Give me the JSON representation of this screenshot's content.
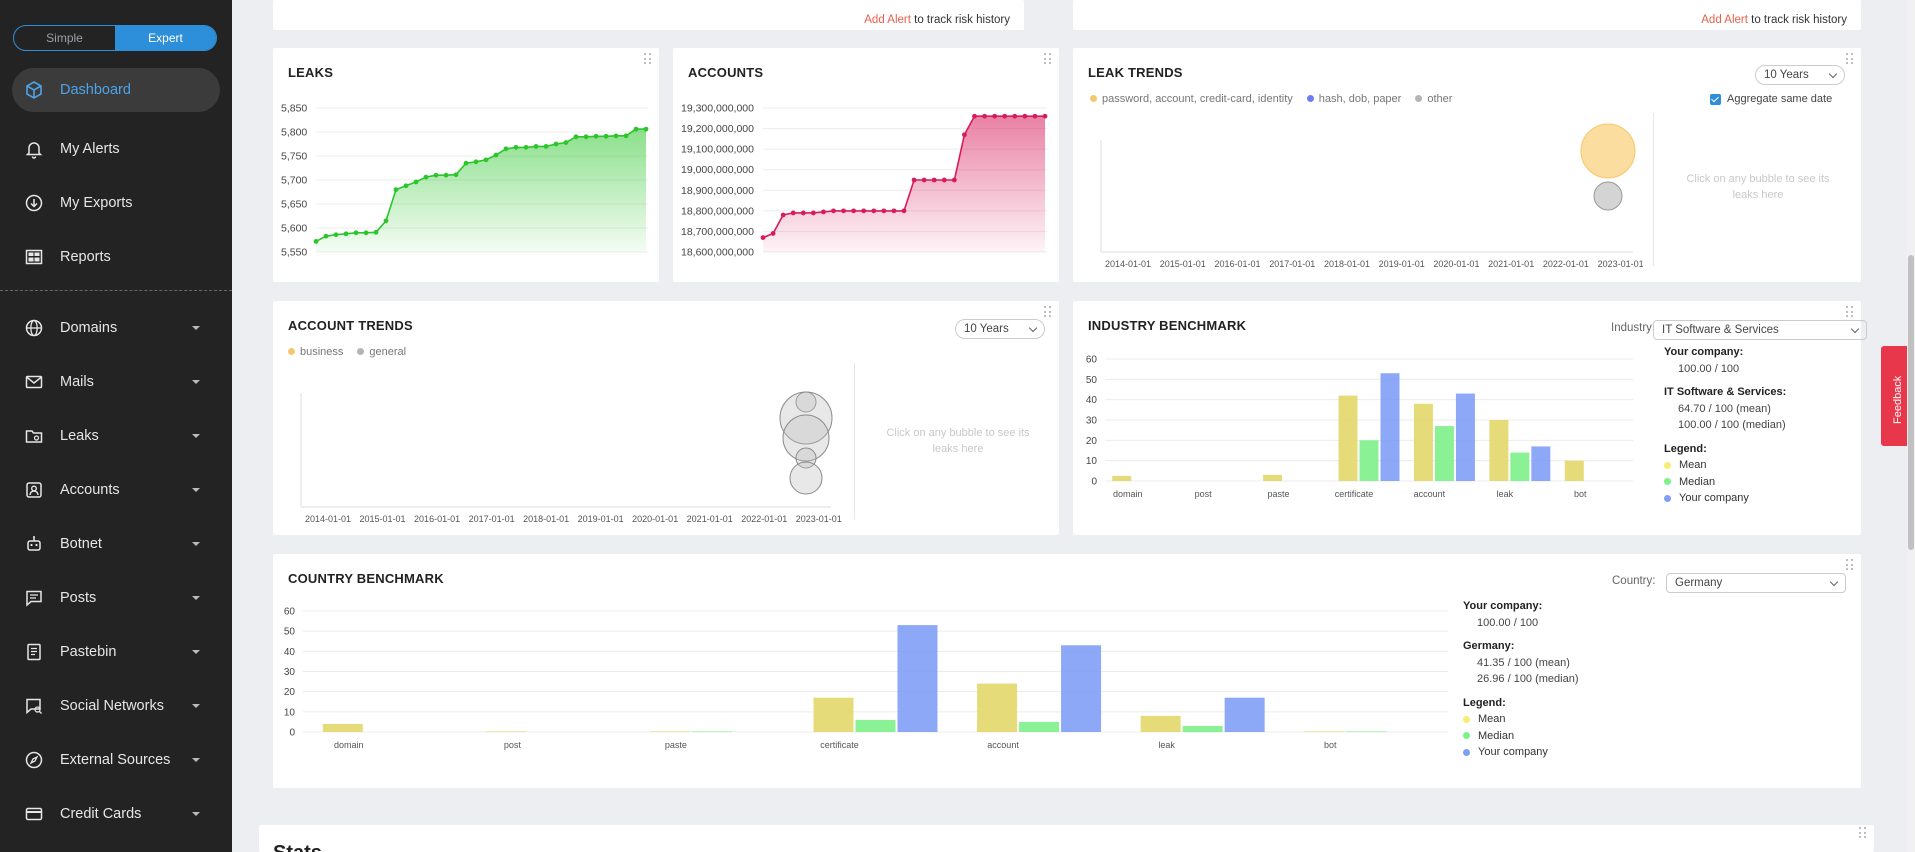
{
  "sidebar": {
    "mode": {
      "simple": "Simple",
      "expert": "Expert"
    },
    "items": [
      {
        "label": "Dashboard",
        "icon": "cube-icon",
        "active": true
      },
      {
        "label": "My Alerts",
        "icon": "bell-icon"
      },
      {
        "label": "My Exports",
        "icon": "download-circle-icon"
      },
      {
        "label": "Reports",
        "icon": "grid-report-icon"
      },
      {
        "label": "Domains",
        "icon": "globe-icon",
        "caret": true
      },
      {
        "label": "Mails",
        "icon": "mail-icon",
        "caret": true
      },
      {
        "label": "Leaks",
        "icon": "folder-icon",
        "caret": true
      },
      {
        "label": "Accounts",
        "icon": "account-box-icon",
        "caret": true
      },
      {
        "label": "Botnet",
        "icon": "robot-icon",
        "caret": true
      },
      {
        "label": "Posts",
        "icon": "message-icon",
        "caret": true
      },
      {
        "label": "Pastebin",
        "icon": "notepad-icon",
        "caret": true
      },
      {
        "label": "Social Networks",
        "icon": "search-chat-icon",
        "caret": true
      },
      {
        "label": "External Sources",
        "icon": "compass-icon",
        "caret": true
      },
      {
        "label": "Credit Cards",
        "icon": "credit-card-icon",
        "caret": true
      }
    ]
  },
  "alerts": {
    "link": "Add Alert",
    "suffix": " to track risk history"
  },
  "leaks_card": {
    "title": "LEAKS"
  },
  "accounts_card": {
    "title": "ACCOUNTS"
  },
  "leak_trends": {
    "title": "LEAK TRENDS",
    "period": "10 Years",
    "aggregate": "Aggregate same date",
    "legend": [
      {
        "label": "password, account, credit-card, identity",
        "color": "#f5c86b"
      },
      {
        "label": "hash, dob, paper",
        "color": "#6b7cf5"
      },
      {
        "label": "other",
        "color": "#b5b5b5"
      }
    ],
    "hint_line1": "Click on any bubble to see its",
    "hint_line2": "leaks here"
  },
  "account_trends": {
    "title": "ACCOUNT TRENDS",
    "period": "10 Years",
    "legend": [
      {
        "label": "business",
        "color": "#f5c86b"
      },
      {
        "label": "general",
        "color": "#b5b5b5"
      }
    ],
    "hint_line1": "Click on any bubble to see its",
    "hint_line2": "leaks here"
  },
  "industry": {
    "title": "INDUSTRY BENCHMARK",
    "filter_label": "Industry:",
    "filter_value": "IT Software & Services",
    "your_company_label": "Your company:",
    "your_company_value": "100.00 / 100",
    "group_label": "IT Software & Services:",
    "group_mean": "64.70 / 100 (mean)",
    "group_median": "100.00 / 100 (median)",
    "legend_label": "Legend:",
    "legend": [
      {
        "label": "Mean",
        "color": "#f5ee70"
      },
      {
        "label": "Median",
        "color": "#7ef08a"
      },
      {
        "label": "Your company",
        "color": "#7f9ef5"
      }
    ]
  },
  "country": {
    "title": "COUNTRY BENCHMARK",
    "filter_label": "Country:",
    "filter_value": "Germany",
    "your_company_label": "Your company:",
    "your_company_value": "100.00 / 100",
    "group_label": "Germany:",
    "group_mean": "41.35 / 100 (mean)",
    "group_median": "26.96 / 100 (median)",
    "legend_label": "Legend:",
    "legend": [
      {
        "label": "Mean",
        "color": "#f5ee70"
      },
      {
        "label": "Median",
        "color": "#7ef08a"
      },
      {
        "label": "Your company",
        "color": "#7f9ef5"
      }
    ]
  },
  "stats_title": "Stats",
  "feedback": "Feedback",
  "chart_data": [
    {
      "type": "area",
      "title": "LEAKS",
      "yticks": [
        "5,850",
        "5,800",
        "5,750",
        "5,700",
        "5,650",
        "5,600",
        "5,550"
      ],
      "ylim": [
        5550,
        5850
      ],
      "values": [
        5572,
        5583,
        5586,
        5588,
        5590,
        5590,
        5591,
        5615,
        5680,
        5688,
        5696,
        5706,
        5710,
        5710,
        5711,
        5735,
        5738,
        5742,
        5752,
        5765,
        5768,
        5768,
        5770,
        5770,
        5775,
        5778,
        5790,
        5790,
        5791,
        5791,
        5792,
        5792,
        5806,
        5806
      ],
      "color": "#2cc62c"
    },
    {
      "type": "area",
      "title": "ACCOUNTS",
      "yticks": [
        "19,300,000,000",
        "19,200,000,000",
        "19,100,000,000",
        "19,000,000,000",
        "18,900,000,000",
        "18,800,000,000",
        "18,700,000,000",
        "18,600,000,000"
      ],
      "ylim": [
        18600000000,
        19300000000
      ],
      "values": [
        18670000000,
        18690000000,
        18780000000,
        18790000000,
        18790000000,
        18790000000,
        18795000000,
        18800000000,
        18800000000,
        18800000000,
        18800000000,
        18800000000,
        18800000000,
        18800000000,
        18800000000,
        18950000000,
        18950000000,
        18950000000,
        18950000000,
        18950000000,
        19170000000,
        19260000000,
        19260000000,
        19260000000,
        19260000000,
        19260000000,
        19260000000,
        19260000000,
        19260000000
      ],
      "color": "#d81b5b"
    },
    {
      "type": "scatter",
      "title": "LEAK TRENDS",
      "x_labels": [
        "2014-01-01",
        "2015-01-01",
        "2016-01-01",
        "2017-01-01",
        "2018-01-01",
        "2019-01-01",
        "2020-01-01",
        "2021-01-01",
        "2022-01-01",
        "2023-01-01"
      ],
      "bubbles": [
        {
          "date": "2023-03-01",
          "size": 10,
          "series": "password, account, credit-card, identity"
        },
        {
          "date": "2023-03-01",
          "size": 5,
          "series": "other"
        }
      ]
    },
    {
      "type": "scatter",
      "title": "ACCOUNT TRENDS",
      "x_labels": [
        "2014-01-01",
        "2015-01-01",
        "2016-01-01",
        "2017-01-01",
        "2018-01-01",
        "2019-01-01",
        "2020-01-01",
        "2021-01-01",
        "2022-01-01",
        "2023-01-01"
      ],
      "bubbles": [
        {
          "date": "2022-12-01",
          "size": 4,
          "series": "general"
        },
        {
          "date": "2022-12-01",
          "size": 10,
          "series": "general"
        },
        {
          "date": "2022-12-01",
          "size": 9,
          "series": "general"
        },
        {
          "date": "2022-12-01",
          "size": 5,
          "series": "general"
        },
        {
          "date": "2022-12-01",
          "size": 6,
          "series": "general"
        }
      ]
    },
    {
      "type": "bar",
      "title": "INDUSTRY BENCHMARK",
      "categories": [
        "domain",
        "post",
        "paste",
        "certificate",
        "account",
        "leak",
        "bot"
      ],
      "ylim": [
        0,
        60
      ],
      "yticks": [
        0,
        10,
        20,
        30,
        40,
        50,
        60
      ],
      "series": [
        {
          "name": "Mean",
          "values": [
            2.5,
            0,
            3,
            42,
            38,
            30,
            10
          ]
        },
        {
          "name": "Median",
          "values": [
            0,
            0,
            0,
            20,
            27,
            14,
            0
          ]
        },
        {
          "name": "Your company",
          "values": [
            0,
            0,
            0,
            53,
            43,
            17,
            0
          ]
        }
      ]
    },
    {
      "type": "bar",
      "title": "COUNTRY BENCHMARK",
      "categories": [
        "domain",
        "post",
        "paste",
        "certificate",
        "account",
        "leak",
        "bot"
      ],
      "ylim": [
        0,
        60
      ],
      "yticks": [
        0,
        10,
        20,
        30,
        40,
        50,
        60
      ],
      "series": [
        {
          "name": "Mean",
          "values": [
            4,
            0.3,
            0.3,
            17,
            24,
            8,
            0.3
          ]
        },
        {
          "name": "Median",
          "values": [
            0,
            0,
            0.3,
            6,
            5,
            3,
            0.3
          ]
        },
        {
          "name": "Your company",
          "values": [
            0,
            0,
            0,
            53,
            43,
            17,
            0
          ]
        }
      ]
    }
  ]
}
